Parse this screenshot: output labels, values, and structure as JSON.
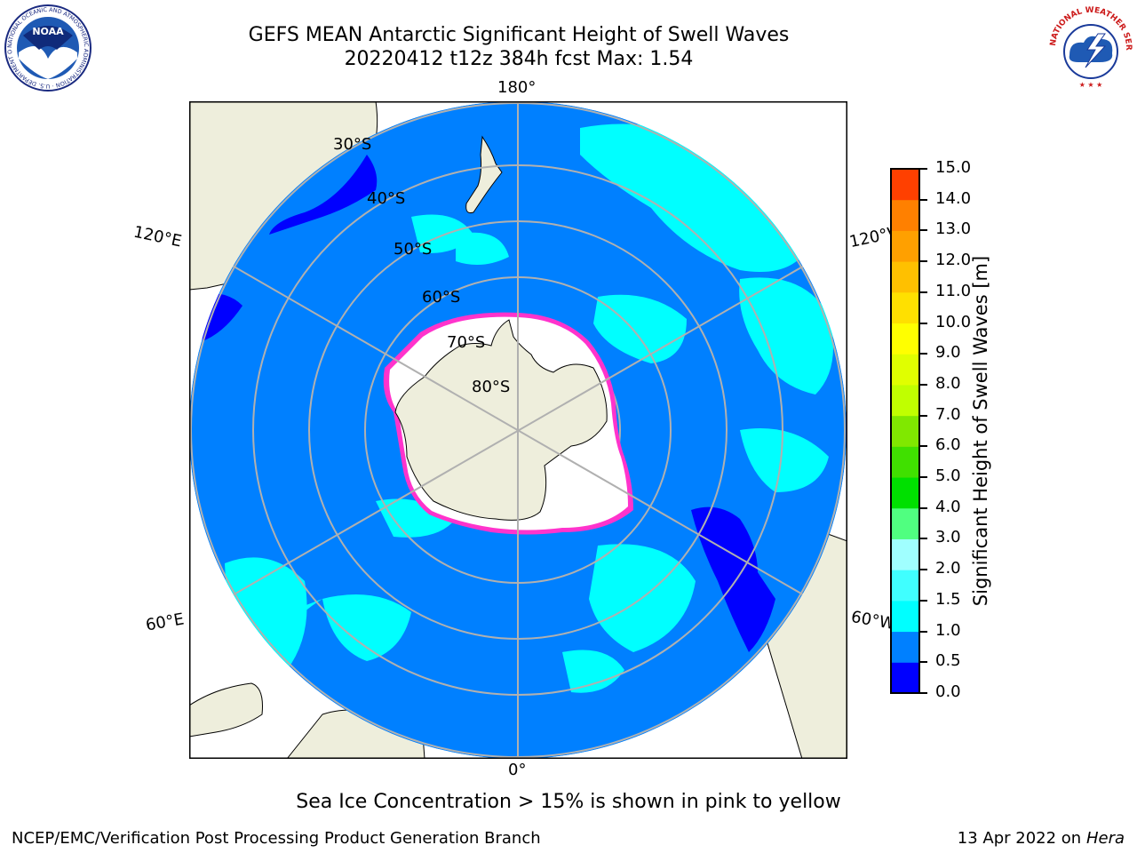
{
  "header": {
    "title_line1": "GEFS MEAN Antarctic Significant Height of Swell Waves",
    "title_line2": "20220412 t12z 384h fcst   Max: 1.54"
  },
  "logos": {
    "noaa_text": "NOAA",
    "noaa_ring": "NATIONAL OCEANIC AND ATMOSPHERIC ADMINISTRATION · U.S. DEPARTMENT OF COMMERCE",
    "nws_ring": "NATIONAL WEATHER SERVICE"
  },
  "map": {
    "projection": "south-polar-stereographic",
    "lon_labels": [
      "180°",
      "120°E",
      "120°W",
      "60°E",
      "60°W",
      "0°"
    ],
    "lat_labels": [
      "30°S",
      "40°S",
      "50°S",
      "60°S",
      "70°S",
      "80°S"
    ],
    "colors": {
      "ocean_low": "#0080ff",
      "ocean_mid": "#00ffff",
      "ocean_min": "#0000ff",
      "land": "#eeeedc",
      "ice": "#ffffff",
      "ice_edge": "#ff33cc",
      "grid": "#b0b0b0"
    }
  },
  "colorbar": {
    "title": "Significant Height of Swell Waves [m]",
    "ticks": [
      "0.0",
      "0.5",
      "1.0",
      "1.5",
      "2.0",
      "3.0",
      "4.0",
      "5.0",
      "6.0",
      "7.0",
      "8.0",
      "9.0",
      "10.0",
      "11.0",
      "12.0",
      "13.0",
      "14.0",
      "15.0"
    ],
    "colors": [
      "#0000ff",
      "#0080ff",
      "#00ffff",
      "#40ffff",
      "#a0ffff",
      "#50ff80",
      "#00e000",
      "#40e000",
      "#80e800",
      "#c0ff00",
      "#e0ff00",
      "#ffff00",
      "#ffe000",
      "#ffc000",
      "#ffa000",
      "#ff8000",
      "#ff4000",
      "#ff0000"
    ]
  },
  "footer": {
    "note": "Sea Ice Concentration > 15% is shown in pink to yellow",
    "credit": "NCEP/EMC/Verification Post Processing Product Generation Branch",
    "date_prefix": "13 Apr 2022 on ",
    "host": "Hera"
  }
}
